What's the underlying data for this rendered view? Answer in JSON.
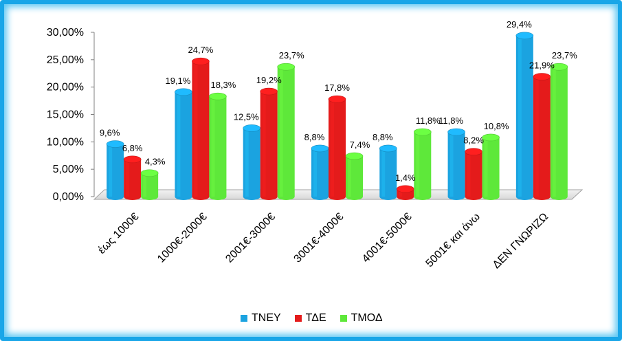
{
  "chart_data": {
    "type": "bar",
    "categories": [
      "έως 1000€",
      "1000€-2000€",
      "2001€-3000€",
      "3001€-4000€",
      "4001€-5000€",
      "5001€ και άνω",
      "ΔΕΝ ΓΝΩΡΙΖΩ"
    ],
    "series": [
      {
        "name": "ΤΝΕΥ",
        "color": "#1ba3e0",
        "values": [
          9.6,
          19.1,
          12.5,
          8.8,
          8.8,
          11.8,
          29.4
        ],
        "labels": [
          "9,6%",
          "19,1%",
          "12,5%",
          "8,8%",
          "8,8%",
          "11,8%",
          "29,4%"
        ]
      },
      {
        "name": "ΤΔΕ",
        "color": "#e41b1b",
        "values": [
          6.8,
          24.7,
          19.2,
          17.8,
          1.4,
          8.2,
          21.9
        ],
        "labels": [
          "6,8%",
          "24,7%",
          "19,2%",
          "17,8%",
          "1,4%",
          "8,2%",
          "21,9%"
        ]
      },
      {
        "name": "ΤΜΟΔ",
        "color": "#5ee83a",
        "values": [
          4.3,
          18.3,
          23.7,
          7.4,
          11.8,
          10.8,
          23.7
        ],
        "labels": [
          "4,3%",
          "18,3%",
          "23,7%",
          "7,4%",
          "11,8%",
          "10,8%",
          "23,7%"
        ]
      }
    ],
    "yticks": [
      "0,00%",
      "5,00%",
      "10,00%",
      "15,00%",
      "20,00%",
      "25,00%",
      "30,00%"
    ],
    "ylim": [
      0,
      30
    ],
    "grid": false,
    "legend_position": "bottom"
  }
}
